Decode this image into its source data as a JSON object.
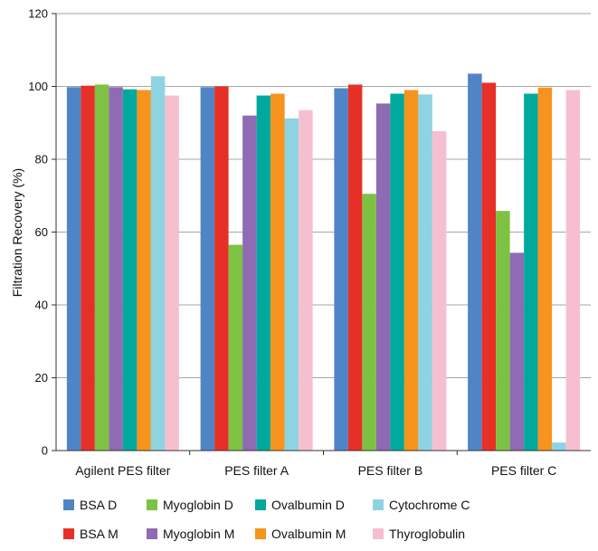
{
  "chart_data": {
    "type": "bar",
    "title": "",
    "xlabel": "",
    "ylabel": "Filtration Recovery (%)",
    "ylim": [
      0,
      120
    ],
    "yticks": [
      "0",
      "20",
      "40",
      "60",
      "80",
      "100",
      "120"
    ],
    "grid": true,
    "legend_position": "bottom",
    "categories": [
      "Agilent PES filter",
      "PES filter A",
      "PES filter B",
      "PES filter C"
    ],
    "series": [
      {
        "name": "BSA D",
        "color": "#4F85C6",
        "values": [
          99.8,
          99.8,
          99.5,
          103.5
        ]
      },
      {
        "name": "BSA M",
        "color": "#E63027",
        "values": [
          100.2,
          100.0,
          100.5,
          101.0
        ]
      },
      {
        "name": "Myoglobin D",
        "color": "#7DC242",
        "values": [
          100.5,
          56.5,
          70.5,
          65.8
        ]
      },
      {
        "name": "Myoglobin M",
        "color": "#8E6BB3",
        "values": [
          99.8,
          92.0,
          95.3,
          54.3
        ]
      },
      {
        "name": "Ovalbumin D",
        "color": "#00A99D",
        "values": [
          99.2,
          97.5,
          98.0,
          98.0
        ]
      },
      {
        "name": "Ovalbumin M",
        "color": "#F7941D",
        "values": [
          99.0,
          98.0,
          99.0,
          99.7
        ]
      },
      {
        "name": "Cytochrome C",
        "color": "#8ED3E2",
        "values": [
          102.8,
          91.2,
          97.8,
          2.2
        ]
      },
      {
        "name": "Thyroglobulin",
        "color": "#F6BFCF",
        "values": [
          97.5,
          93.5,
          87.7,
          99.0
        ]
      }
    ],
    "legend_order": [
      "BSA D",
      "Myoglobin D",
      "Ovalbumin D",
      "Cytochrome C",
      "BSA M",
      "Myoglobin M",
      "Ovalbumin M",
      "Thyroglobulin"
    ]
  }
}
